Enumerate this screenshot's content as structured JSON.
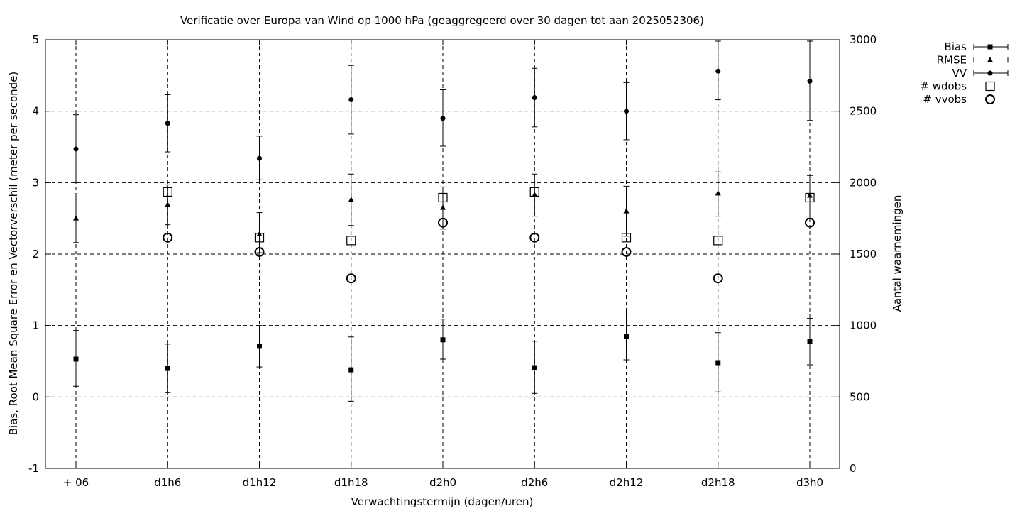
{
  "chart_data": {
    "type": "scatter",
    "title": "Verificatie over Europa van Wind op 1000 hPa (geaggregeerd over 30 dagen tot aan 2025052306)",
    "xlabel": "Verwachtingstermijn (dagen/uren)",
    "ylabel": "Bias, Root Mean Square Error en Vectorverschil (meter per seconde)",
    "y2label": "Aantal waarnemingen",
    "categories": [
      "+ 06",
      "d1h6",
      "d1h12",
      "d1h18",
      "d2h0",
      "d2h6",
      "d2h12",
      "d2h18",
      "d3h0"
    ],
    "ylim": [
      -1,
      5
    ],
    "y_ticks": [
      "-1",
      "0",
      "1",
      "2",
      "3",
      "4",
      "5"
    ],
    "y2lim": [
      0,
      3000
    ],
    "y2_ticks": [
      "0",
      "500",
      "1000",
      "1500",
      "2000",
      "2500",
      "3000"
    ],
    "grid": true,
    "legend_position": "top-right outside",
    "series": [
      {
        "name": "Bias",
        "axis": "left",
        "marker": "filled-square",
        "errorbars": true,
        "values": [
          0.53,
          0.4,
          0.71,
          0.38,
          0.8,
          0.41,
          0.85,
          0.48,
          0.78
        ],
        "low": [
          0.15,
          0.06,
          0.42,
          -0.06,
          0.53,
          0.05,
          0.52,
          0.07,
          0.45
        ],
        "high": [
          0.93,
          0.74,
          1.0,
          0.84,
          1.09,
          0.78,
          1.19,
          0.9,
          1.1
        ]
      },
      {
        "name": "RMSE",
        "axis": "left",
        "marker": "filled-triangle",
        "errorbars": true,
        "values": [
          2.5,
          2.69,
          2.28,
          2.76,
          2.65,
          2.83,
          2.6,
          2.85,
          2.82
        ],
        "low": [
          2.16,
          2.41,
          2.02,
          2.4,
          2.35,
          2.53,
          2.25,
          2.53,
          2.5
        ],
        "high": [
          2.84,
          2.97,
          2.58,
          3.12,
          2.94,
          3.12,
          2.95,
          3.15,
          3.1
        ]
      },
      {
        "name": "VV",
        "axis": "left",
        "marker": "filled-circle",
        "errorbars": true,
        "values": [
          3.47,
          3.83,
          3.34,
          4.16,
          3.9,
          4.19,
          4.0,
          4.56,
          4.42
        ],
        "low": [
          3.0,
          3.43,
          3.04,
          3.68,
          3.51,
          3.78,
          3.6,
          4.16,
          3.87
        ],
        "high": [
          3.95,
          4.23,
          3.65,
          4.64,
          4.3,
          4.6,
          4.4,
          4.98,
          4.98
        ]
      },
      {
        "name": "# wdobs",
        "axis": "right",
        "marker": "open-square",
        "errorbars": false,
        "values": [
          null,
          1935,
          1615,
          1595,
          1895,
          1935,
          1615,
          1595,
          1895
        ]
      },
      {
        "name": "# vvobs",
        "axis": "right",
        "marker": "open-circle",
        "errorbars": false,
        "values": [
          null,
          1615,
          1515,
          1330,
          1720,
          1615,
          1515,
          1330,
          1720
        ]
      }
    ]
  }
}
